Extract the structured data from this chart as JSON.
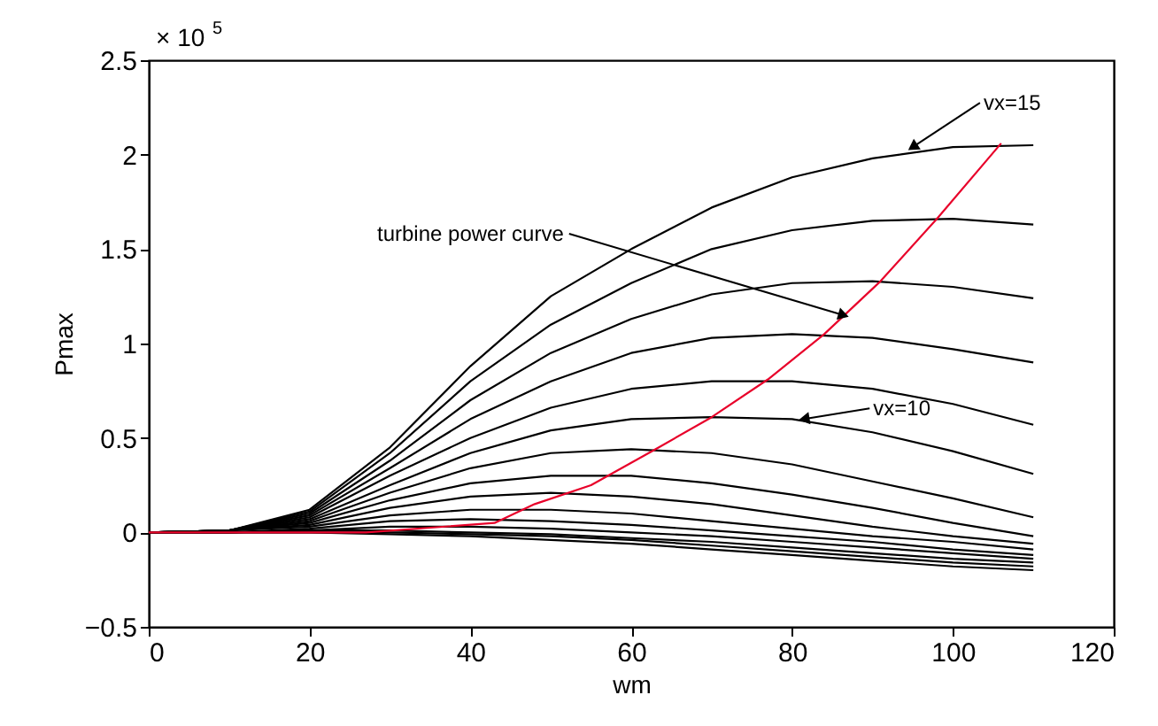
{
  "chart_data": {
    "type": "line",
    "xlabel": "wm",
    "ylabel": "Pmax",
    "annotations": [
      "× 10$^{5}$",
      {
        "text": "vx=15",
        "x": 95,
        "y": 2.04
      },
      {
        "text": "turbine power curve",
        "x": 86.4,
        "y": 1.15
      },
      {
        "text": "vx=10",
        "x": 81.5,
        "y": 0.6
      }
    ],
    "x": [
      0,
      10,
      20,
      30,
      40,
      50,
      60,
      70,
      80,
      90,
      100,
      110
    ],
    "series": [
      {
        "color": "#000000",
        "values": [
          0,
          0.01,
          0.12,
          0.45,
          0.88,
          1.25,
          1.5,
          1.72,
          1.88,
          1.98,
          2.04,
          2.05
        ]
      },
      {
        "color": "#000000",
        "values": [
          0,
          0.01,
          0.11,
          0.42,
          0.8,
          1.1,
          1.32,
          1.5,
          1.6,
          1.65,
          1.66,
          1.63
        ]
      },
      {
        "color": "#000000",
        "values": [
          0,
          0.01,
          0.1,
          0.38,
          0.7,
          0.95,
          1.13,
          1.26,
          1.32,
          1.33,
          1.3,
          1.24
        ]
      },
      {
        "color": "#000000",
        "values": [
          0,
          0.01,
          0.09,
          0.34,
          0.6,
          0.8,
          0.95,
          1.03,
          1.05,
          1.03,
          0.97,
          0.9
        ]
      },
      {
        "color": "#000000",
        "values": [
          0,
          0.01,
          0.08,
          0.3,
          0.5,
          0.66,
          0.76,
          0.8,
          0.8,
          0.76,
          0.68,
          0.57
        ]
      },
      {
        "color": "#000000",
        "values": [
          0,
          0.01,
          0.07,
          0.25,
          0.42,
          0.54,
          0.6,
          0.61,
          0.6,
          0.53,
          0.43,
          0.31
        ]
      },
      {
        "color": "#000000",
        "values": [
          0,
          0.01,
          0.06,
          0.21,
          0.34,
          0.42,
          0.44,
          0.42,
          0.36,
          0.27,
          0.18,
          0.08
        ]
      },
      {
        "color": "#000000",
        "values": [
          0,
          0.01,
          0.05,
          0.17,
          0.26,
          0.3,
          0.3,
          0.26,
          0.2,
          0.13,
          0.05,
          -0.02
        ]
      },
      {
        "color": "#000000",
        "values": [
          0,
          0.01,
          0.04,
          0.13,
          0.19,
          0.21,
          0.19,
          0.15,
          0.09,
          0.03,
          -0.02,
          -0.06
        ]
      },
      {
        "color": "#000000",
        "values": [
          0,
          0.01,
          0.03,
          0.09,
          0.12,
          0.12,
          0.1,
          0.06,
          0.02,
          -0.02,
          -0.05,
          -0.09
        ]
      },
      {
        "color": "#000000",
        "values": [
          0,
          0,
          0.02,
          0.06,
          0.07,
          0.06,
          0.04,
          0.01,
          -0.02,
          -0.05,
          -0.09,
          -0.12
        ]
      },
      {
        "color": "#000000",
        "values": [
          0,
          0,
          0.01,
          0.03,
          0.03,
          0.02,
          0,
          -0.02,
          -0.05,
          -0.08,
          -0.11,
          -0.14
        ]
      },
      {
        "color": "#000000",
        "values": [
          0,
          0,
          0.01,
          0.01,
          0,
          -0.01,
          -0.03,
          -0.05,
          -0.08,
          -0.11,
          -0.14,
          -0.16
        ]
      },
      {
        "color": "#000000",
        "values": [
          0,
          0,
          0,
          0,
          -0.01,
          -0.02,
          -0.04,
          -0.07,
          -0.1,
          -0.13,
          -0.16,
          -0.18
        ]
      },
      {
        "color": "#000000",
        "values": [
          0,
          0,
          0,
          -0.01,
          -0.02,
          -0.04,
          -0.06,
          -0.09,
          -0.12,
          -0.15,
          -0.18,
          -0.2
        ]
      },
      {
        "color": "#e8002a",
        "x": [
          0,
          27,
          43,
          48,
          55,
          63,
          70,
          77,
          84,
          91,
          98,
          106
        ],
        "values": [
          0,
          0,
          0.05,
          0.15,
          0.25,
          0.44,
          0.61,
          0.81,
          1.05,
          1.33,
          1.66,
          2.06
        ]
      }
    ],
    "xlim": [
      0,
      120
    ],
    "ylim": [
      -0.5,
      2.5
    ],
    "xticks": [
      0,
      20,
      40,
      60,
      80,
      100,
      120
    ],
    "yticks": [
      -0.5,
      0,
      0.5,
      1,
      1.5,
      2,
      2.5
    ],
    "grid": false
  }
}
